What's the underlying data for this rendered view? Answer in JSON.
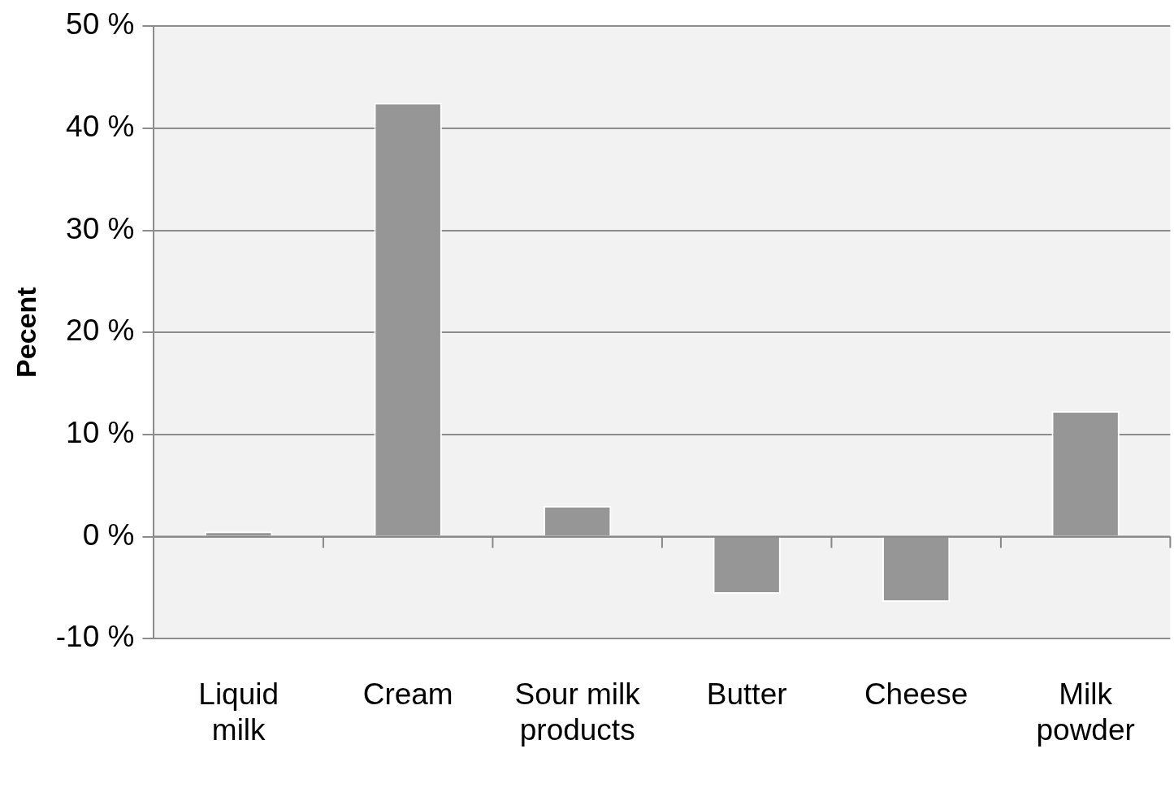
{
  "chart_data": {
    "type": "bar",
    "ylabel": "Pecent",
    "categories": [
      "Liquid milk",
      "Cream",
      "Sour milk products",
      "Butter",
      "Cheese",
      "Milk powder"
    ],
    "values": [
      0.5,
      42.5,
      3.0,
      -5.6,
      -6.4,
      12.3
    ],
    "color": "#969696",
    "ylim": [
      -10,
      50
    ],
    "yticks": [
      {
        "value": -10,
        "label": "-10 %"
      },
      {
        "value": 0,
        "label": "0 %"
      },
      {
        "value": 10,
        "label": "10 %"
      },
      {
        "value": 20,
        "label": "20 %"
      },
      {
        "value": 30,
        "label": "30 %"
      },
      {
        "value": 40,
        "label": "40 %"
      },
      {
        "value": 50,
        "label": "50 %"
      }
    ],
    "grid": "y",
    "legend": false
  }
}
